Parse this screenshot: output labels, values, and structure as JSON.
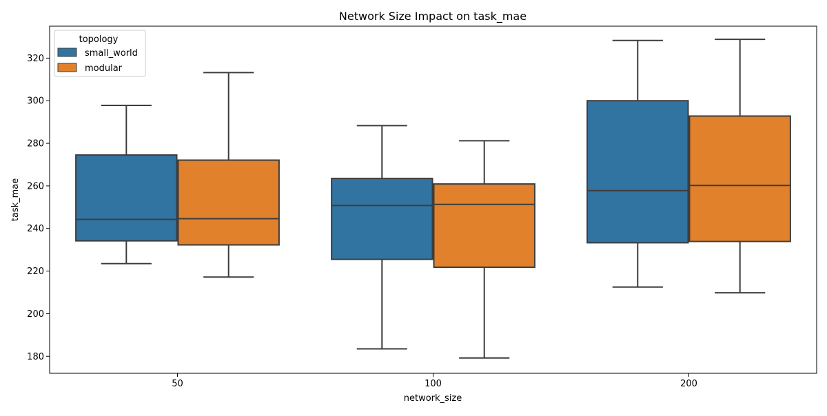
{
  "chart_data": {
    "type": "box",
    "title": "Network Size Impact on task_mae",
    "xlabel": "network_size",
    "ylabel": "task_mae",
    "categories": [
      "50",
      "100",
      "200"
    ],
    "ylim": [
      172,
      335
    ],
    "yticks": [
      180,
      200,
      220,
      240,
      260,
      280,
      300,
      320
    ],
    "legend": {
      "title": "topology",
      "position": "top-left"
    },
    "series": [
      {
        "name": "small_world",
        "color": "#3274a1",
        "boxes": [
          {
            "min": 223.5,
            "q1": 234.2,
            "median": 244.3,
            "q3": 274.5,
            "max": 297.8
          },
          {
            "min": 183.5,
            "q1": 225.5,
            "median": 250.8,
            "q3": 263.5,
            "max": 288.3
          },
          {
            "min": 212.5,
            "q1": 233.3,
            "median": 257.8,
            "q3": 300.0,
            "max": 328.3
          }
        ]
      },
      {
        "name": "modular",
        "color": "#e1812c",
        "boxes": [
          {
            "min": 217.2,
            "q1": 232.3,
            "median": 244.6,
            "q3": 272.1,
            "max": 313.2
          },
          {
            "min": 179.2,
            "q1": 221.8,
            "median": 251.3,
            "q3": 260.9,
            "max": 281.2
          },
          {
            "min": 209.8,
            "q1": 233.9,
            "median": 260.2,
            "q3": 292.8,
            "max": 328.8
          }
        ]
      }
    ]
  }
}
